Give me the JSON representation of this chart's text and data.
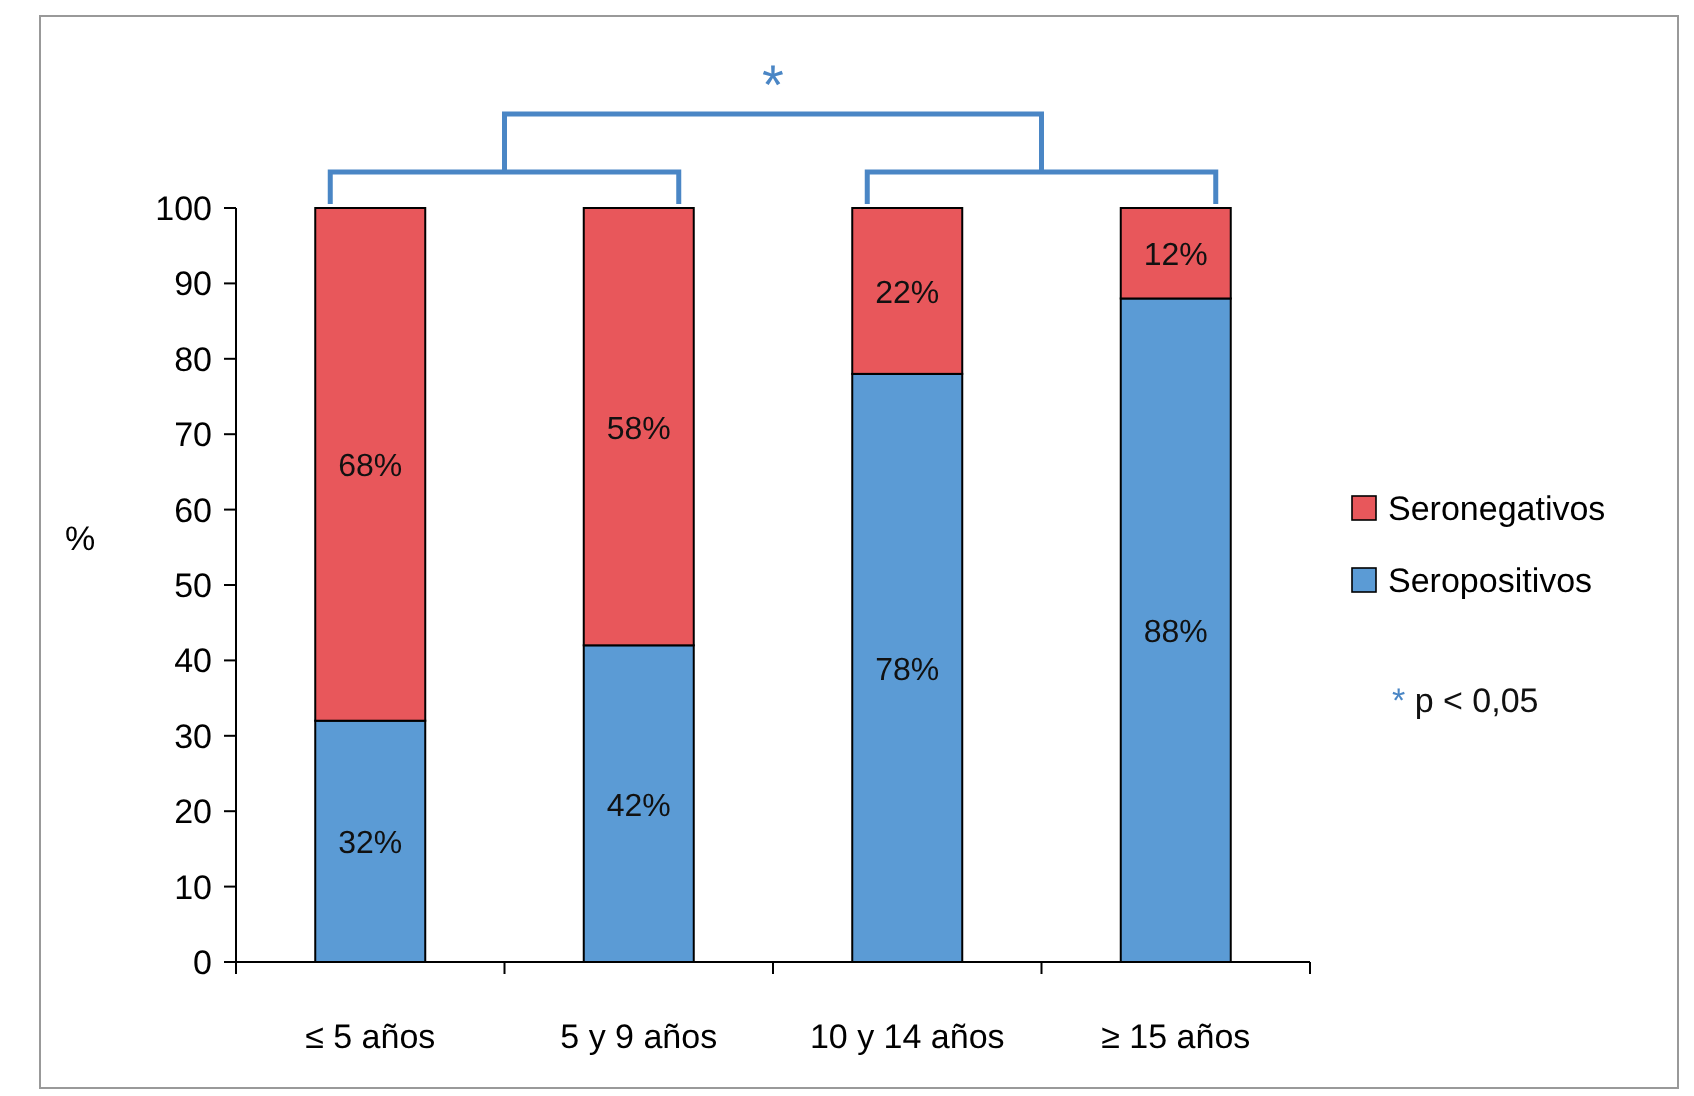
{
  "chart_data": {
    "type": "bar",
    "stacked": true,
    "ylabel": "%",
    "categories": [
      "≤ 5 años",
      "5 y 9 años",
      "10 y 14 años",
      "≥ 15 años"
    ],
    "series": [
      {
        "name": "Seropositivos",
        "color": "#5b9bd5",
        "values": [
          32,
          42,
          78,
          88
        ],
        "value_labels": [
          "32%",
          "42%",
          "78%",
          "88%"
        ]
      },
      {
        "name": "Seronegativos",
        "color": "#e8575b",
        "values": [
          68,
          58,
          22,
          12
        ],
        "value_labels": [
          "68%",
          "58%",
          "22%",
          "12%"
        ]
      }
    ],
    "ylim": [
      0,
      100
    ],
    "yticks": [
      0,
      10,
      20,
      30,
      40,
      50,
      60,
      70,
      80,
      90,
      100
    ],
    "grid": false,
    "legend": "right",
    "annotations": [
      "*",
      "* p < 0,05"
    ]
  }
}
